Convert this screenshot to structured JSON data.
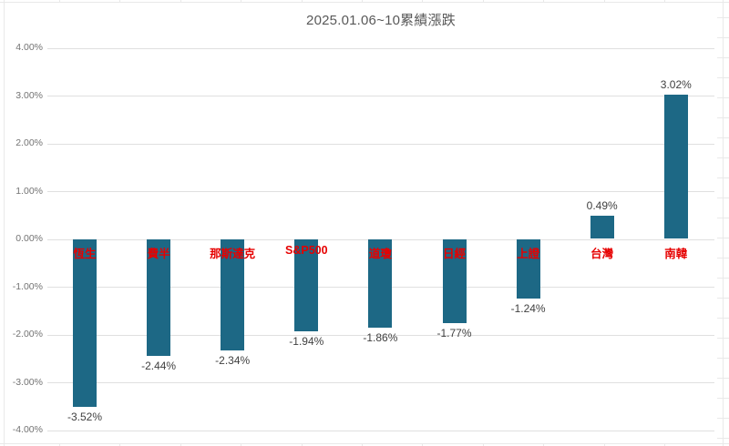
{
  "chart_data": {
    "type": "bar",
    "title": "2025.01.06~10累績漲跌",
    "categories": [
      "恆生",
      "費半",
      "那斯達克",
      "S&P500",
      "道瓊",
      "日經",
      "上證",
      "台灣",
      "南韓"
    ],
    "values": [
      -3.52,
      -2.44,
      -2.34,
      -1.94,
      -1.86,
      -1.77,
      -1.24,
      0.49,
      3.02
    ],
    "value_labels": [
      "-3.52%",
      "-2.44%",
      "-2.34%",
      "-1.94%",
      "-1.86%",
      "-1.77%",
      "-1.24%",
      "0.49%",
      "3.02%"
    ],
    "ytick_labels": [
      "4.00%",
      "3.00%",
      "2.00%",
      "1.00%",
      "0.00%",
      "-1.00%",
      "-2.00%",
      "-3.00%",
      "-4.00%"
    ],
    "ytick_values": [
      4,
      3,
      2,
      1,
      0,
      -1,
      -2,
      -3,
      -4
    ],
    "ylim": [
      -4,
      4
    ],
    "xlabel": "",
    "ylabel": "",
    "grid": true,
    "legend": "none",
    "colors": {
      "bar": "#1d6885",
      "category_label": "#e60000",
      "value_label": "#404040",
      "axis_label": "#737373",
      "gridline": "#e0e0e0",
      "title": "#595959",
      "sheet_line": "#e9e9e9",
      "background": "#ffffff"
    }
  }
}
